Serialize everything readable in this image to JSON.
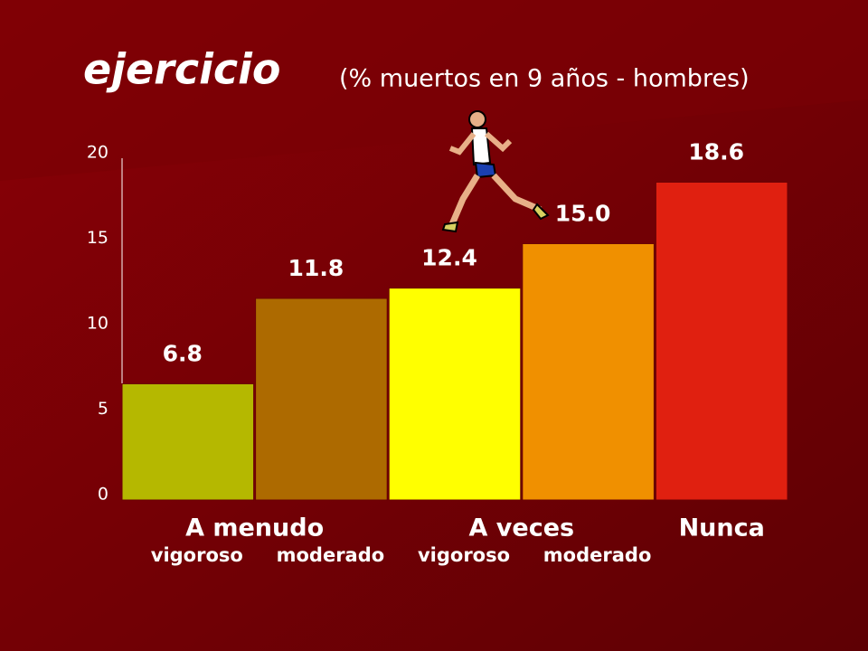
{
  "chart_data": {
    "type": "bar",
    "title": "ejercicio",
    "subtitle": "(% muertos en 9 años - hombres)",
    "groups": [
      "A menudo",
      "A veces",
      "Nunca"
    ],
    "categories": [
      "vigoroso",
      "moderado",
      "vigoroso",
      "moderado",
      null
    ],
    "values": [
      6.8,
      11.8,
      12.4,
      15.0,
      18.6
    ],
    "value_labels": [
      "6.8",
      "11.8",
      "12.4",
      "15.0",
      "18.6"
    ],
    "colors": [
      "#b5b800",
      "#ad6a00",
      "#ffff00",
      "#f09000",
      "#e02010"
    ],
    "ylim": [
      0,
      20
    ],
    "yticks": [
      0,
      5,
      10,
      15,
      20
    ]
  }
}
